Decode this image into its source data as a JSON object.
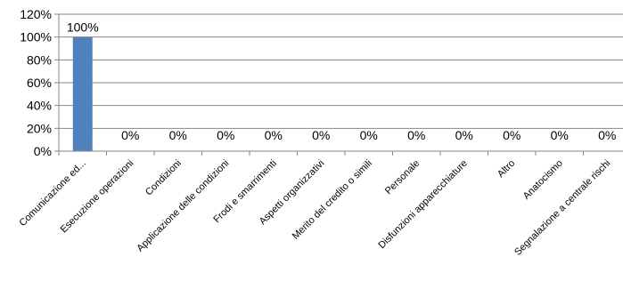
{
  "chart_data": {
    "type": "bar",
    "categories": [
      "Comunicazione ed...",
      "Esecuzione operazioni",
      "Condizioni",
      "Applicazione delle condizioni",
      "Frodi e smarrimenti",
      "Aspetti organizzativi",
      "Merito del credito o simili",
      "Personale",
      "Disfunzioni apparecchiature",
      "Altro",
      "Anatocismo",
      "Segnalazione a centrale rischi"
    ],
    "values": [
      100,
      0,
      0,
      0,
      0,
      0,
      0,
      0,
      0,
      0,
      0,
      0
    ],
    "data_labels": [
      "100%",
      "0%",
      "0%",
      "0%",
      "0%",
      "0%",
      "0%",
      "0%",
      "0%",
      "0%",
      "0%",
      "0%"
    ],
    "y_ticks": [
      "0%",
      "20%",
      "40%",
      "60%",
      "80%",
      "100%",
      "120%"
    ],
    "ylim": [
      0,
      120
    ],
    "grid": true,
    "legend": "none",
    "bar_color": "#4F81BD",
    "grid_color": "#868686",
    "axis_color": "#868686"
  }
}
